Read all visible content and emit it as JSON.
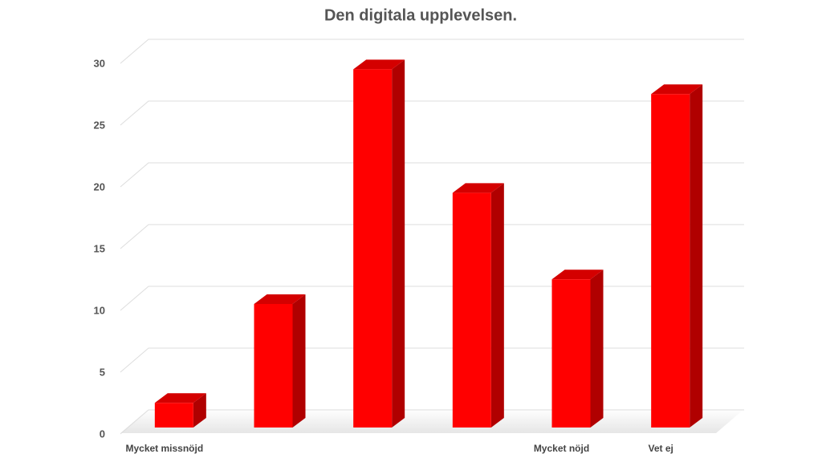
{
  "chart_data": {
    "type": "bar3d",
    "title": "Den digitala upplevelsen.",
    "categories": [
      "Mycket missnöjd",
      null,
      null,
      null,
      "Mycket nöjd",
      "Vet ej"
    ],
    "values": [
      2,
      10,
      29,
      19,
      12,
      27
    ],
    "color": "#ff0000",
    "ylim": [
      0,
      30
    ],
    "yticks": [
      0,
      5,
      10,
      15,
      20,
      25,
      30
    ],
    "grid": true
  }
}
